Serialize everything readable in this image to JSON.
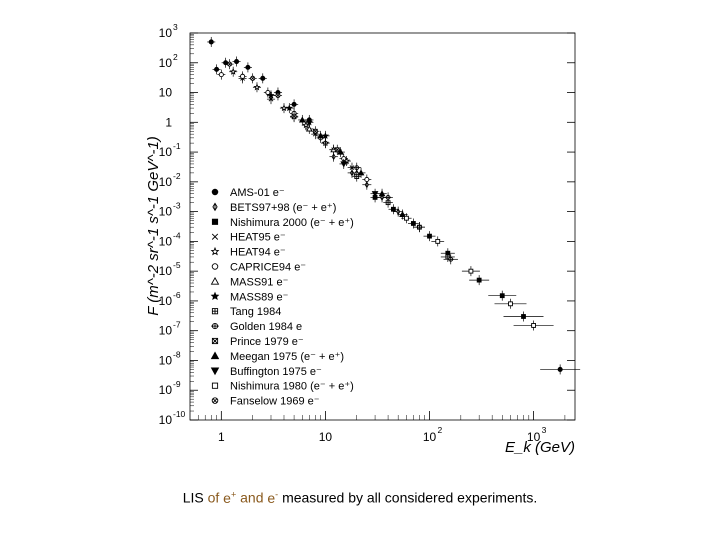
{
  "chart_data": {
    "type": "scatter",
    "title": "",
    "xlabel": "E_k (GeV)",
    "ylabel": "F (m^-2 sr^-1 s^-1 GeV^-1)",
    "xscale": "log",
    "yscale": "log",
    "xlim": [
      0.5,
      2500
    ],
    "ylim": [
      1e-10,
      1000
    ],
    "x_ticks": [
      {
        "value": 1,
        "base": "1",
        "exp": ""
      },
      {
        "value": 10,
        "base": "10",
        "exp": ""
      },
      {
        "value": 100,
        "base": "10",
        "exp": "2"
      },
      {
        "value": 1000,
        "base": "10",
        "exp": "3"
      }
    ],
    "y_ticks": [
      {
        "value": 1000,
        "base": "10",
        "exp": "3"
      },
      {
        "value": 100,
        "base": "10",
        "exp": "2"
      },
      {
        "value": 10,
        "base": "10",
        "exp": ""
      },
      {
        "value": 1,
        "base": "1",
        "exp": ""
      },
      {
        "value": 0.1,
        "base": "10",
        "exp": "-1"
      },
      {
        "value": 0.01,
        "base": "10",
        "exp": "-2"
      },
      {
        "value": 0.001,
        "base": "10",
        "exp": "-3"
      },
      {
        "value": 0.0001,
        "base": "10",
        "exp": "-4"
      },
      {
        "value": 1e-05,
        "base": "10",
        "exp": "-5"
      },
      {
        "value": 1e-06,
        "base": "10",
        "exp": "-6"
      },
      {
        "value": 1e-07,
        "base": "10",
        "exp": "-7"
      },
      {
        "value": 1e-08,
        "base": "10",
        "exp": "-8"
      },
      {
        "value": 1e-09,
        "base": "10",
        "exp": "-9"
      },
      {
        "value": 1e-10,
        "base": "10",
        "exp": "-10"
      }
    ],
    "legend_position": "bottom-left",
    "series": [
      {
        "name": "AMS-01 e⁻",
        "marker": "circle-filled",
        "x": [
          0.9,
          1.1,
          1.4,
          1.8,
          2.5,
          3.5,
          5,
          7
        ],
        "y": [
          60,
          100,
          110,
          70,
          30,
          10,
          4,
          1.2
        ]
      },
      {
        "name": "BETS97+98 (e⁻ + e⁺)",
        "marker": "diamond",
        "x": [
          12,
          18,
          25,
          35,
          50
        ],
        "y": [
          0.07,
          0.02,
          0.008,
          0.003,
          0.001
        ]
      },
      {
        "name": "Nishimura 2000 (e⁻ + e⁺)",
        "marker": "square-filled",
        "x": [
          30,
          45,
          70,
          100,
          150,
          300,
          500,
          800
        ],
        "y": [
          0.003,
          0.0012,
          0.0004,
          0.00015,
          4e-05,
          5e-06,
          1.5e-06,
          3e-07
        ]
      },
      {
        "name": "HEAT95 e⁻",
        "marker": "x-cross",
        "x": [
          1.6,
          3,
          5,
          8,
          12,
          18
        ],
        "y": [
          30,
          6,
          1.5,
          0.4,
          0.12,
          0.03
        ]
      },
      {
        "name": "HEAT94 e⁻",
        "marker": "star-open",
        "x": [
          1.3,
          2.2,
          4,
          6.5,
          10,
          16
        ],
        "y": [
          50,
          15,
          3,
          0.8,
          0.2,
          0.05
        ]
      },
      {
        "name": "CAPRICE94 e⁻",
        "marker": "circle-open",
        "x": [
          1,
          1.6,
          2.8,
          5,
          9,
          15,
          25
        ],
        "y": [
          40,
          35,
          10,
          2,
          0.3,
          0.06,
          0.012
        ]
      },
      {
        "name": "MASS91 e⁻",
        "marker": "triangle-open",
        "x": [
          7,
          12,
          20
        ],
        "y": [
          0.6,
          0.12,
          0.02
        ]
      },
      {
        "name": "MASS89 e⁻",
        "marker": "star-filled",
        "x": [
          3,
          4.5,
          7,
          10
        ],
        "y": [
          8,
          3,
          1,
          0.35
        ]
      },
      {
        "name": "Tang 1984",
        "marker": "square-dot",
        "x": [
          20,
          40,
          80,
          150
        ],
        "y": [
          0.015,
          0.002,
          0.0003,
          3e-05
        ]
      },
      {
        "name": "Golden 1984 e",
        "marker": "circle-cross",
        "x": [
          10,
          20,
          40,
          80,
          160
        ],
        "y": [
          0.2,
          0.03,
          0.003,
          0.0003,
          2.5e-05
        ]
      },
      {
        "name": "Prince 1979 e⁻",
        "marker": "square-x",
        "x": [
          5,
          8,
          13
        ],
        "y": [
          1.6,
          0.5,
          0.12
        ]
      },
      {
        "name": "Meegan 1975 (e⁻ + e⁺)",
        "marker": "triangle-filled",
        "x": [
          6,
          9,
          14,
          22,
          35,
          55
        ],
        "y": [
          1.2,
          0.35,
          0.1,
          0.02,
          0.004,
          0.0008
        ]
      },
      {
        "name": "Buffington 1975 e⁻",
        "marker": "triangle-down",
        "x": [
          15,
          30
        ],
        "y": [
          0.04,
          0.004
        ]
      },
      {
        "name": "Nishimura 1980 (e⁻ + e⁺)",
        "marker": "square-open",
        "x": [
          60,
          120,
          250,
          600,
          1000
        ],
        "y": [
          0.0006,
          0.0001,
          1e-05,
          8e-07,
          1.5e-07
        ]
      },
      {
        "name": "Fanselow 1969 e⁻",
        "marker": "circle-x",
        "x": [
          1.2,
          2,
          3.5
        ],
        "y": [
          90,
          30,
          8
        ]
      },
      {
        "name": "",
        "marker": "circle-filled",
        "x": [
          0.8,
          1800
        ],
        "y": [
          500,
          5e-09
        ]
      }
    ]
  },
  "caption": {
    "prefix": "LIS",
    "word_of": "of",
    "e_plus": "e",
    "plus_sign": "+",
    "word_and": "and",
    "e_minus": "e",
    "minus_sign": "-",
    "suffix": "measured by all considered experiments."
  },
  "colors": {
    "ink": "#000000",
    "axis": "#000000",
    "caption_highlight": "#8a5a1e",
    "background": "#ffffff"
  }
}
